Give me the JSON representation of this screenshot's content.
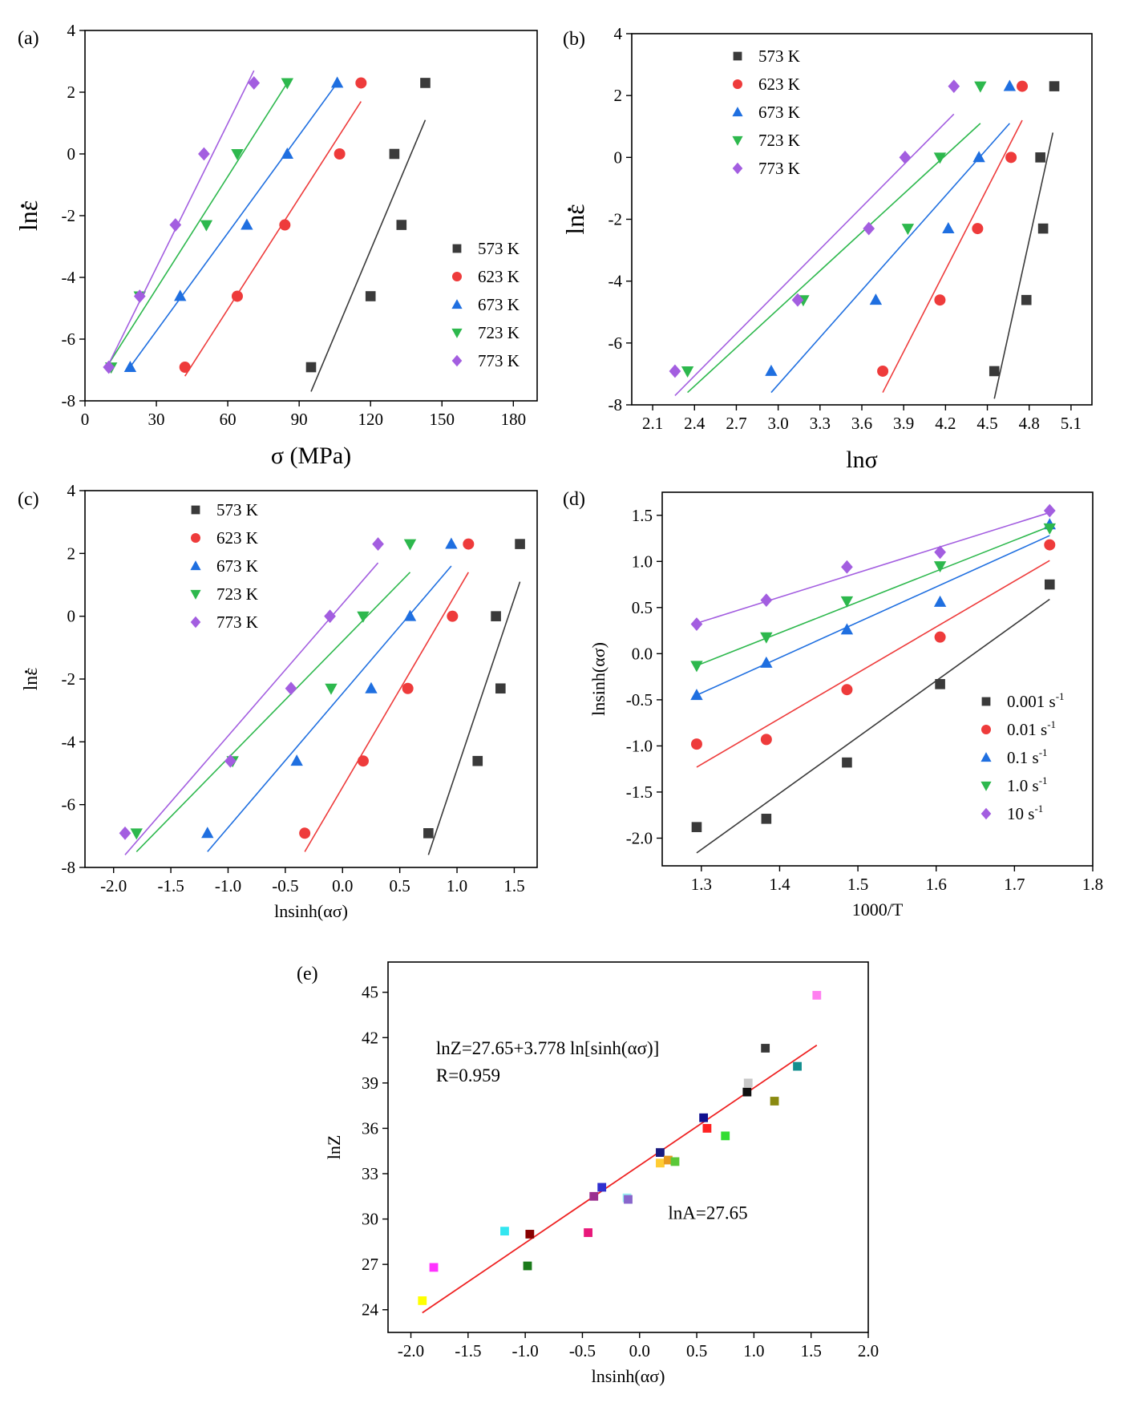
{
  "chart_data": [
    {
      "id": "a",
      "panel_label": "(a)",
      "type": "scatter",
      "xlabel": "σ (MPa)",
      "ylabel": "lnε",
      "ylabel_dot": true,
      "xlim": [
        0,
        190
      ],
      "ylim": [
        -8,
        4
      ],
      "xticks": [
        0,
        30,
        60,
        90,
        120,
        150,
        180
      ],
      "xtick_labels": [
        "0",
        "30",
        "60",
        "90",
        "120",
        "150",
        "180"
      ],
      "yticks": [
        -8,
        -6,
        -4,
        -2,
        0,
        2,
        4
      ],
      "ytick_labels": [
        "-8",
        "-6",
        "-4",
        "-2",
        "0",
        "2",
        "4"
      ],
      "legend_position": "right",
      "series": [
        {
          "name": "573 K",
          "color": "#3a3a3a",
          "marker": "square",
          "x": [
            95,
            120,
            133,
            130,
            143
          ],
          "y": [
            -6.91,
            -4.61,
            -2.3,
            0.0,
            2.3
          ],
          "fit": [
            [
              95,
              -7.7
            ],
            [
              143,
              1.1
            ]
          ]
        },
        {
          "name": "623 K",
          "color": "#ee3b3b",
          "marker": "circle",
          "x": [
            42,
            64,
            84,
            107,
            116
          ],
          "y": [
            -6.91,
            -4.61,
            -2.3,
            0.0,
            2.3
          ],
          "fit": [
            [
              42,
              -7.2
            ],
            [
              116,
              1.7
            ]
          ]
        },
        {
          "name": "673 K",
          "color": "#1f6fe0",
          "marker": "triangle-up",
          "x": [
            19,
            40,
            68,
            85,
            106
          ],
          "y": [
            -6.91,
            -4.61,
            -2.3,
            0.0,
            2.3
          ],
          "fit": [
            [
              19,
              -6.9
            ],
            [
              106,
              2.3
            ]
          ]
        },
        {
          "name": "723 K",
          "color": "#2db84d",
          "marker": "triangle-down",
          "x": [
            11,
            23,
            51,
            64,
            85
          ],
          "y": [
            -6.91,
            -4.61,
            -2.3,
            0.0,
            2.3
          ],
          "fit": [
            [
              10,
              -6.8
            ],
            [
              85,
              2.3
            ]
          ]
        },
        {
          "name": "773 K",
          "color": "#a35ee0",
          "marker": "diamond",
          "x": [
            10,
            23,
            38,
            50,
            71
          ],
          "y": [
            -6.91,
            -4.61,
            -2.3,
            0.0,
            2.3
          ],
          "fit": [
            [
              10,
              -6.8
            ],
            [
              71,
              2.7
            ]
          ]
        }
      ]
    },
    {
      "id": "b",
      "panel_label": "(b)",
      "type": "scatter",
      "xlabel": "lnσ",
      "ylabel": "lnε",
      "ylabel_dot": true,
      "xlim": [
        1.95,
        5.25
      ],
      "ylim": [
        -8,
        4
      ],
      "xticks": [
        2.1,
        2.4,
        2.7,
        3.0,
        3.3,
        3.6,
        3.9,
        4.2,
        4.5,
        4.8,
        5.1
      ],
      "xtick_labels": [
        "2.1",
        "2.4",
        "2.7",
        "3.0",
        "3.3",
        "3.6",
        "3.9",
        "4.2",
        "4.5",
        "4.8",
        "5.1"
      ],
      "yticks": [
        -8,
        -6,
        -4,
        -2,
        0,
        2,
        4
      ],
      "ytick_labels": [
        "-8",
        "-6",
        "-4",
        "-2",
        "0",
        "2",
        "4"
      ],
      "legend_position": "top-left",
      "series": [
        {
          "name": "573 K",
          "color": "#3a3a3a",
          "marker": "square",
          "x": [
            4.55,
            4.78,
            4.9,
            4.88,
            4.98
          ],
          "y": [
            -6.91,
            -4.61,
            -2.3,
            0.0,
            2.3
          ],
          "fit": [
            [
              4.55,
              -7.8
            ],
            [
              4.97,
              0.8
            ]
          ]
        },
        {
          "name": "623 K",
          "color": "#ee3b3b",
          "marker": "circle",
          "x": [
            3.75,
            4.16,
            4.43,
            4.67,
            4.75
          ],
          "y": [
            -6.91,
            -4.61,
            -2.3,
            0.0,
            2.3
          ],
          "fit": [
            [
              3.75,
              -7.6
            ],
            [
              4.75,
              1.2
            ]
          ]
        },
        {
          "name": "673 K",
          "color": "#1f6fe0",
          "marker": "triangle-up",
          "x": [
            2.95,
            3.7,
            4.22,
            4.44,
            4.66
          ],
          "y": [
            -6.91,
            -4.61,
            -2.3,
            0.0,
            2.3
          ],
          "fit": [
            [
              2.95,
              -7.6
            ],
            [
              4.66,
              1.1
            ]
          ]
        },
        {
          "name": "723 K",
          "color": "#2db84d",
          "marker": "triangle-down",
          "x": [
            2.35,
            3.18,
            3.93,
            4.16,
            4.45
          ],
          "y": [
            -6.91,
            -4.61,
            -2.3,
            0.0,
            2.3
          ],
          "fit": [
            [
              2.35,
              -7.6
            ],
            [
              4.45,
              1.1
            ]
          ]
        },
        {
          "name": "773 K",
          "color": "#a35ee0",
          "marker": "diamond",
          "x": [
            2.26,
            3.14,
            3.65,
            3.91,
            4.26
          ],
          "y": [
            -6.91,
            -4.61,
            -2.3,
            0.0,
            2.3
          ],
          "fit": [
            [
              2.26,
              -7.7
            ],
            [
              4.26,
              1.4
            ]
          ]
        }
      ]
    },
    {
      "id": "c",
      "panel_label": "(c)",
      "type": "scatter",
      "xlabel": "lnsinh(ασ)",
      "ylabel": "lnε",
      "ylabel_dot": true,
      "xlim": [
        -2.25,
        1.7
      ],
      "ylim": [
        -8,
        4
      ],
      "xticks": [
        -2.0,
        -1.5,
        -1.0,
        -0.5,
        0.0,
        0.5,
        1.0,
        1.5
      ],
      "xtick_labels": [
        "-2.0",
        "-1.5",
        "-1.0",
        "-0.5",
        "0.0",
        "0.5",
        "1.0",
        "1.5"
      ],
      "yticks": [
        -8,
        -6,
        -4,
        -2,
        0,
        2,
        4
      ],
      "ytick_labels": [
        "-8",
        "-6",
        "-4",
        "-2",
        "0",
        "2",
        "4"
      ],
      "legend_position": "top-left",
      "series": [
        {
          "name": "573 K",
          "color": "#3a3a3a",
          "marker": "square",
          "x": [
            0.75,
            1.18,
            1.38,
            1.34,
            1.55
          ],
          "y": [
            -6.91,
            -4.61,
            -2.3,
            0.0,
            2.3
          ],
          "fit": [
            [
              0.75,
              -7.6
            ],
            [
              1.55,
              1.1
            ]
          ]
        },
        {
          "name": "623 K",
          "color": "#ee3b3b",
          "marker": "circle",
          "x": [
            -0.33,
            0.18,
            0.57,
            0.96,
            1.1
          ],
          "y": [
            -6.91,
            -4.61,
            -2.3,
            0.0,
            2.3
          ],
          "fit": [
            [
              -0.33,
              -7.5
            ],
            [
              1.1,
              1.4
            ]
          ]
        },
        {
          "name": "673 K",
          "color": "#1f6fe0",
          "marker": "triangle-up",
          "x": [
            -1.18,
            -0.4,
            0.25,
            0.59,
            0.95
          ],
          "y": [
            -6.91,
            -4.61,
            -2.3,
            0.0,
            2.3
          ],
          "fit": [
            [
              -1.18,
              -7.5
            ],
            [
              0.95,
              1.6
            ]
          ]
        },
        {
          "name": "723 K",
          "color": "#2db84d",
          "marker": "triangle-down",
          "x": [
            -1.8,
            -0.96,
            -0.1,
            0.18,
            0.59
          ],
          "y": [
            -6.91,
            -4.61,
            -2.3,
            0.0,
            2.3
          ],
          "fit": [
            [
              -1.8,
              -7.5
            ],
            [
              0.59,
              1.4
            ]
          ]
        },
        {
          "name": "773 K",
          "color": "#a35ee0",
          "marker": "diamond",
          "x": [
            -1.9,
            -0.98,
            -0.45,
            -0.11,
            0.31
          ],
          "y": [
            -6.91,
            -4.61,
            -2.3,
            0.0,
            2.3
          ],
          "fit": [
            [
              -1.9,
              -7.6
            ],
            [
              0.31,
              1.7
            ]
          ]
        }
      ]
    },
    {
      "id": "d",
      "panel_label": "(d)",
      "type": "scatter",
      "xlabel": "1000/T",
      "ylabel": "lnsinh(ασ)",
      "ylabel_dot": false,
      "xlim": [
        1.25,
        1.8
      ],
      "ylim": [
        -2.3,
        1.75
      ],
      "xticks": [
        1.3,
        1.4,
        1.5,
        1.6,
        1.7,
        1.8
      ],
      "xtick_labels": [
        "1.3",
        "1.4",
        "1.5",
        "1.6",
        "1.7",
        "1.8"
      ],
      "yticks": [
        -2.0,
        -1.5,
        -1.0,
        -0.5,
        0.0,
        0.5,
        1.0,
        1.5
      ],
      "ytick_labels": [
        "-2.0",
        "-1.5",
        "-1.0",
        "-0.5",
        "0.0",
        "0.5",
        "1.0",
        "1.5"
      ],
      "legend_position": "bottom-right",
      "series": [
        {
          "name": "0.001 s",
          "superscript": "-1",
          "color": "#3a3a3a",
          "marker": "square",
          "x": [
            1.294,
            1.383,
            1.486,
            1.605,
            1.745
          ],
          "y": [
            -1.88,
            -1.79,
            -1.18,
            -0.33,
            0.75
          ],
          "fit": [
            [
              1.294,
              -2.16
            ],
            [
              1.745,
              0.59
            ]
          ]
        },
        {
          "name": "0.01 s",
          "superscript": "-1",
          "color": "#ee3b3b",
          "marker": "circle",
          "x": [
            1.294,
            1.383,
            1.486,
            1.605,
            1.745
          ],
          "y": [
            -0.98,
            -0.93,
            -0.39,
            0.18,
            1.18
          ],
          "fit": [
            [
              1.294,
              -1.23
            ],
            [
              1.745,
              1.01
            ]
          ]
        },
        {
          "name": "0.1 s",
          "superscript": "-1",
          "color": "#1f6fe0",
          "marker": "triangle-up",
          "x": [
            1.294,
            1.383,
            1.486,
            1.605,
            1.745
          ],
          "y": [
            -0.45,
            -0.1,
            0.26,
            0.56,
            1.4
          ],
          "fit": [
            [
              1.294,
              -0.45
            ],
            [
              1.745,
              1.28
            ]
          ]
        },
        {
          "name": "1.0 s",
          "superscript": "-1",
          "color": "#2db84d",
          "marker": "triangle-down",
          "x": [
            1.294,
            1.383,
            1.486,
            1.605,
            1.745
          ],
          "y": [
            -0.13,
            0.18,
            0.57,
            0.95,
            1.36
          ],
          "fit": [
            [
              1.294,
              -0.13
            ],
            [
              1.745,
              1.38
            ]
          ]
        },
        {
          "name": "10 s",
          "superscript": "-1",
          "color": "#a35ee0",
          "marker": "diamond",
          "x": [
            1.294,
            1.383,
            1.486,
            1.605,
            1.745
          ],
          "y": [
            0.32,
            0.58,
            0.94,
            1.1,
            1.55
          ],
          "fit": [
            [
              1.294,
              0.33
            ],
            [
              1.745,
              1.53
            ]
          ]
        }
      ]
    },
    {
      "id": "e",
      "panel_label": "(e)",
      "type": "scatter",
      "xlabel": "lnsinh(ασ)",
      "ylabel": "lnZ",
      "ylabel_dot": false,
      "xlim": [
        -2.2,
        2.0
      ],
      "ylim": [
        22.5,
        47.0
      ],
      "xticks": [
        -2.0,
        -1.5,
        -1.0,
        -0.5,
        0.0,
        0.5,
        1.0,
        1.5,
        2.0
      ],
      "xtick_labels": [
        "-2.0",
        "-1.5",
        "-1.0",
        "-0.5",
        "0.0",
        "0.5",
        "1.0",
        "1.5",
        "2.0"
      ],
      "yticks": [
        24,
        27,
        30,
        33,
        36,
        39,
        42,
        45
      ],
      "ytick_labels": [
        "24",
        "27",
        "30",
        "33",
        "36",
        "39",
        "42",
        "45"
      ],
      "equation": "lnZ=27.65+3.778 ln[sinh(ασ)]",
      "r_value": "R=0.959",
      "intercept_label": "lnA=27.65",
      "fit": [
        [
          -1.9,
          23.8
        ],
        [
          1.55,
          41.5
        ]
      ],
      "fit_color": "#ee2222",
      "points": [
        {
          "x": -1.9,
          "y": 24.6,
          "color": "#ffff00"
        },
        {
          "x": -1.8,
          "y": 26.8,
          "color": "#ff33ff"
        },
        {
          "x": -1.18,
          "y": 29.2,
          "color": "#33e6f0"
        },
        {
          "x": -0.96,
          "y": 29.0,
          "color": "#880000"
        },
        {
          "x": -0.98,
          "y": 26.9,
          "color": "#1a7a1a"
        },
        {
          "x": -0.45,
          "y": 29.1,
          "color": "#e8187a"
        },
        {
          "x": -0.4,
          "y": 31.5,
          "color": "#9a2f8f"
        },
        {
          "x": -0.33,
          "y": 32.1,
          "color": "#3030d0"
        },
        {
          "x": -0.11,
          "y": 31.4,
          "color": "#99f0f0"
        },
        {
          "x": -0.1,
          "y": 31.3,
          "color": "#8866cc"
        },
        {
          "x": 0.18,
          "y": 34.4,
          "color": "#1a1a80"
        },
        {
          "x": 0.18,
          "y": 33.7,
          "color": "#ffcc33"
        },
        {
          "x": 0.25,
          "y": 33.9,
          "color": "#e89a20"
        },
        {
          "x": 0.31,
          "y": 33.8,
          "color": "#5ac838"
        },
        {
          "x": 0.56,
          "y": 36.7,
          "color": "#101090"
        },
        {
          "x": 0.59,
          "y": 36.0,
          "color": "#ff2222"
        },
        {
          "x": 0.75,
          "y": 35.5,
          "color": "#33dd33"
        },
        {
          "x": 0.95,
          "y": 39.0,
          "color": "#c8c8c8"
        },
        {
          "x": 0.94,
          "y": 38.4,
          "color": "#101010"
        },
        {
          "x": 1.1,
          "y": 41.3,
          "color": "#383838"
        },
        {
          "x": 1.18,
          "y": 37.8,
          "color": "#8a8a10"
        },
        {
          "x": 1.38,
          "y": 40.1,
          "color": "#138f8f"
        },
        {
          "x": 1.55,
          "y": 44.8,
          "color": "#ff80f0"
        }
      ]
    }
  ]
}
